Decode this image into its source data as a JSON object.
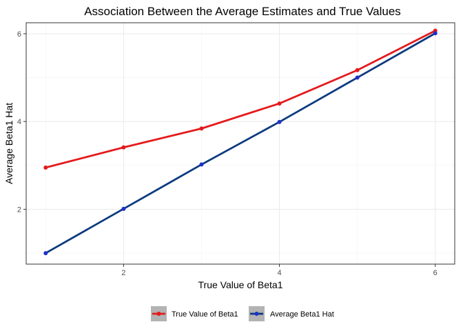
{
  "chart_data": {
    "type": "line",
    "title": "Association Between the Average Estimates and True Values",
    "xlabel": "True Value of Beta1",
    "ylabel": "Average Beta1 Hat",
    "x": [
      1,
      2,
      3,
      4,
      5,
      6
    ],
    "xlim": [
      0.75,
      6.25
    ],
    "ylim": [
      0.75,
      6.25
    ],
    "xticks": [
      2,
      4,
      6
    ],
    "yticks": [
      2,
      4,
      6
    ],
    "grid": true,
    "legend_position": "bottom",
    "series": [
      {
        "name": "True Value of Beta1",
        "color": "#e41a1c",
        "point_color": "#e41a1c",
        "values": [
          2.95,
          3.41,
          3.84,
          4.41,
          5.17,
          6.07
        ]
      },
      {
        "name": "Average Beta1 Hat",
        "color": "#0b3a7e",
        "point_color": "#1f2fd0",
        "values": [
          1.0,
          2.01,
          3.02,
          3.99,
          5.0,
          6.01
        ]
      }
    ]
  }
}
